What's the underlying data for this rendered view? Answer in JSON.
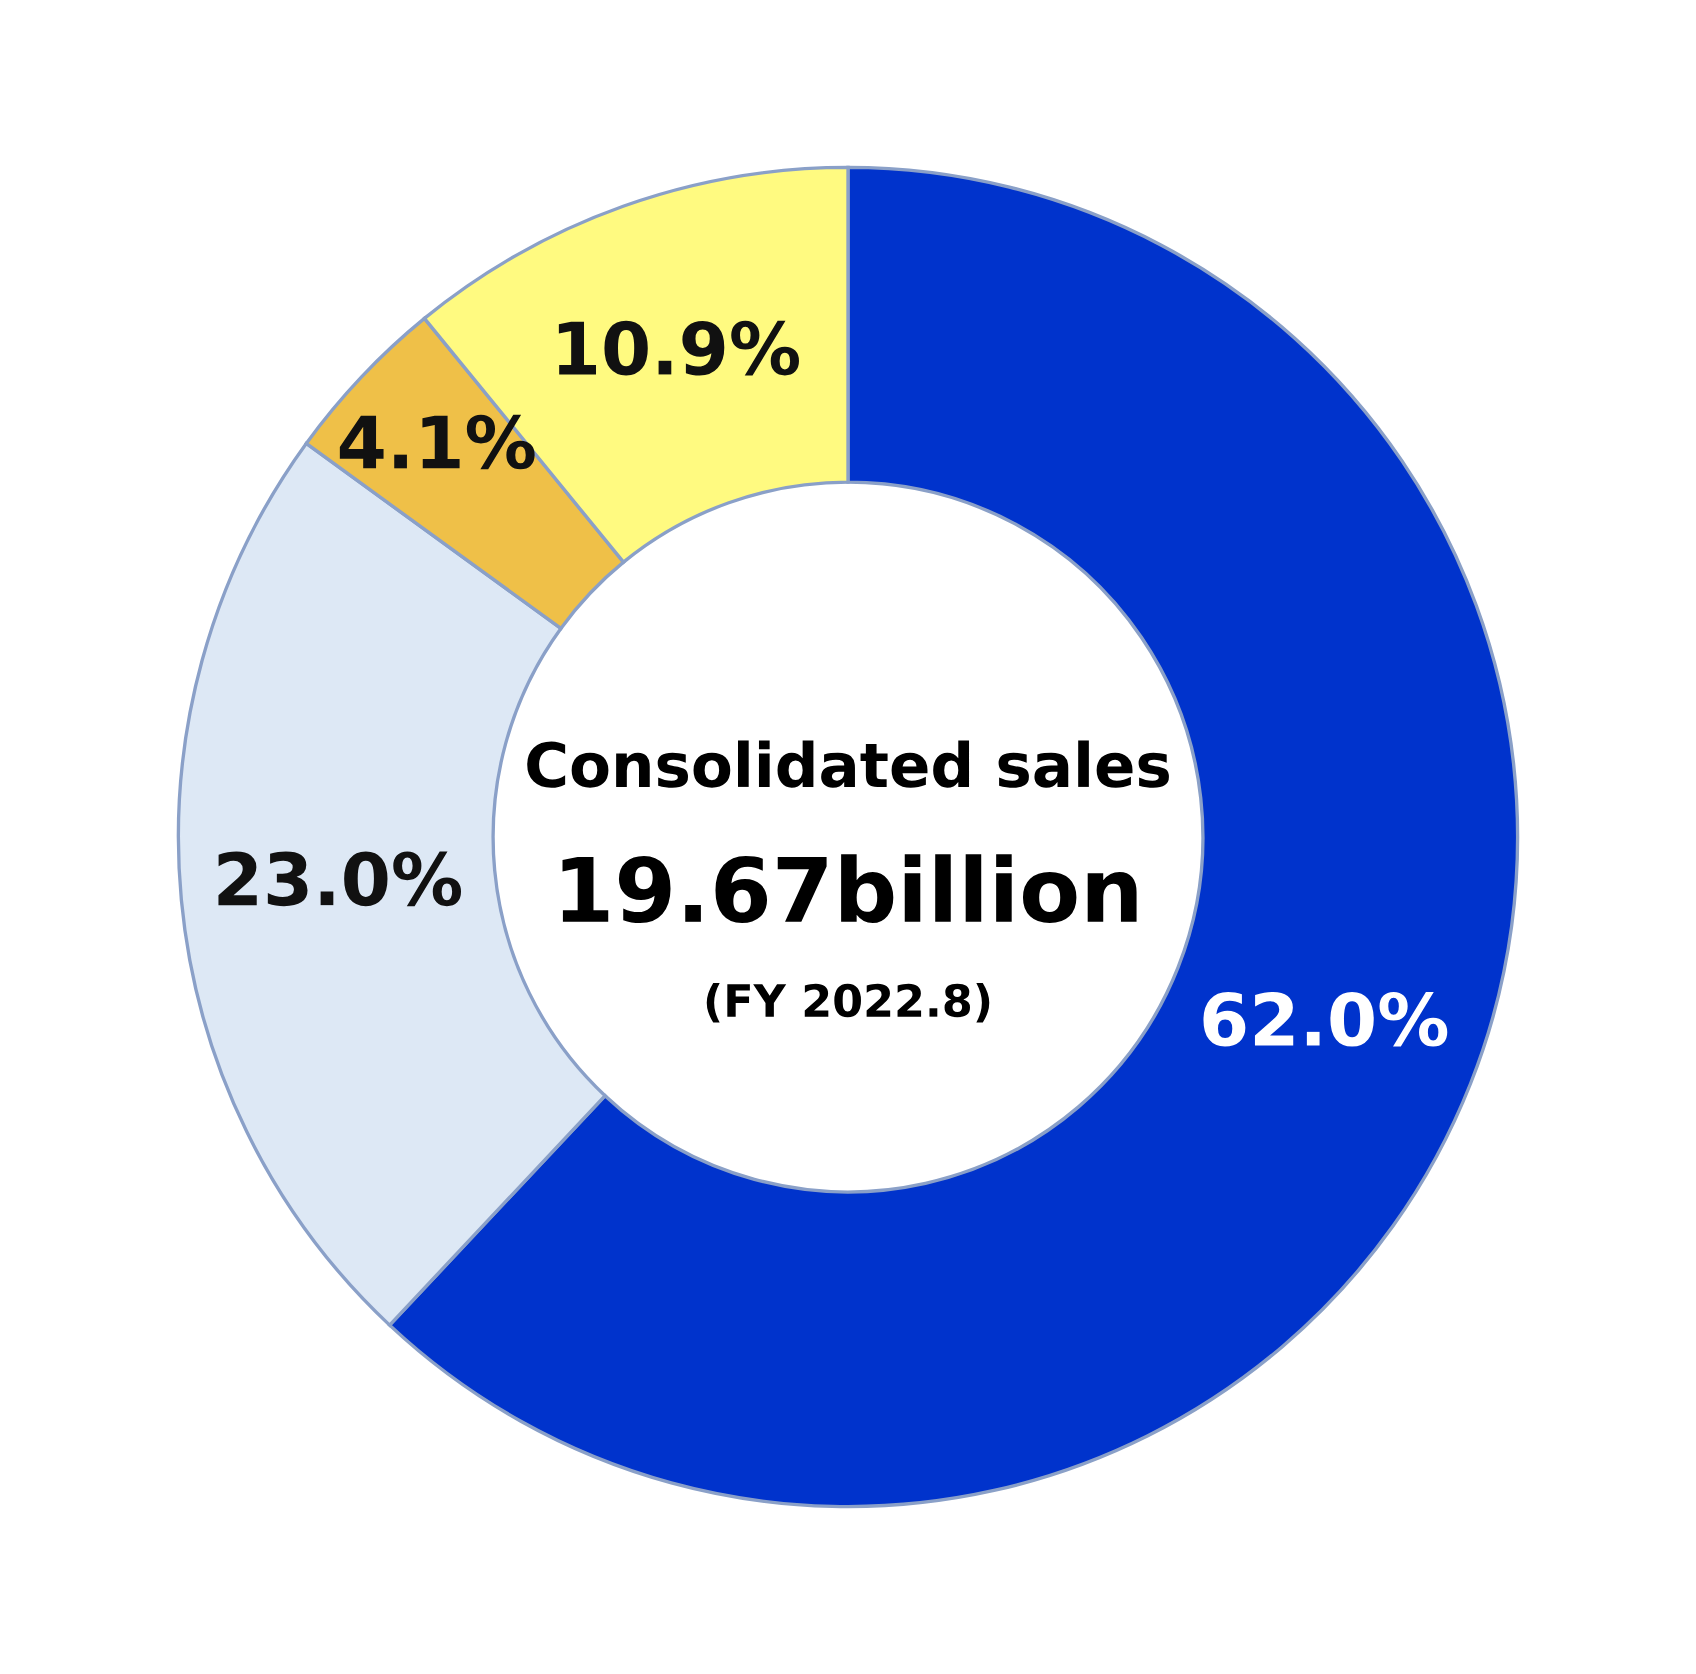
{
  "chart_data": {
    "type": "donut",
    "title": "Consolidated sales",
    "subtitle": "19.67billion",
    "annotations": [
      "(FY 2022.8)"
    ],
    "categories": [
      null,
      null,
      null,
      null
    ],
    "values": [
      62.0,
      23.0,
      4.1,
      10.9
    ],
    "colors": [
      "#0033cc",
      "#dde8f5",
      "#efc048",
      "#fffa80"
    ],
    "value_labels": [
      "62.0%",
      "23.0%",
      "4.1%",
      "10.9%"
    ],
    "legend": false
  }
}
